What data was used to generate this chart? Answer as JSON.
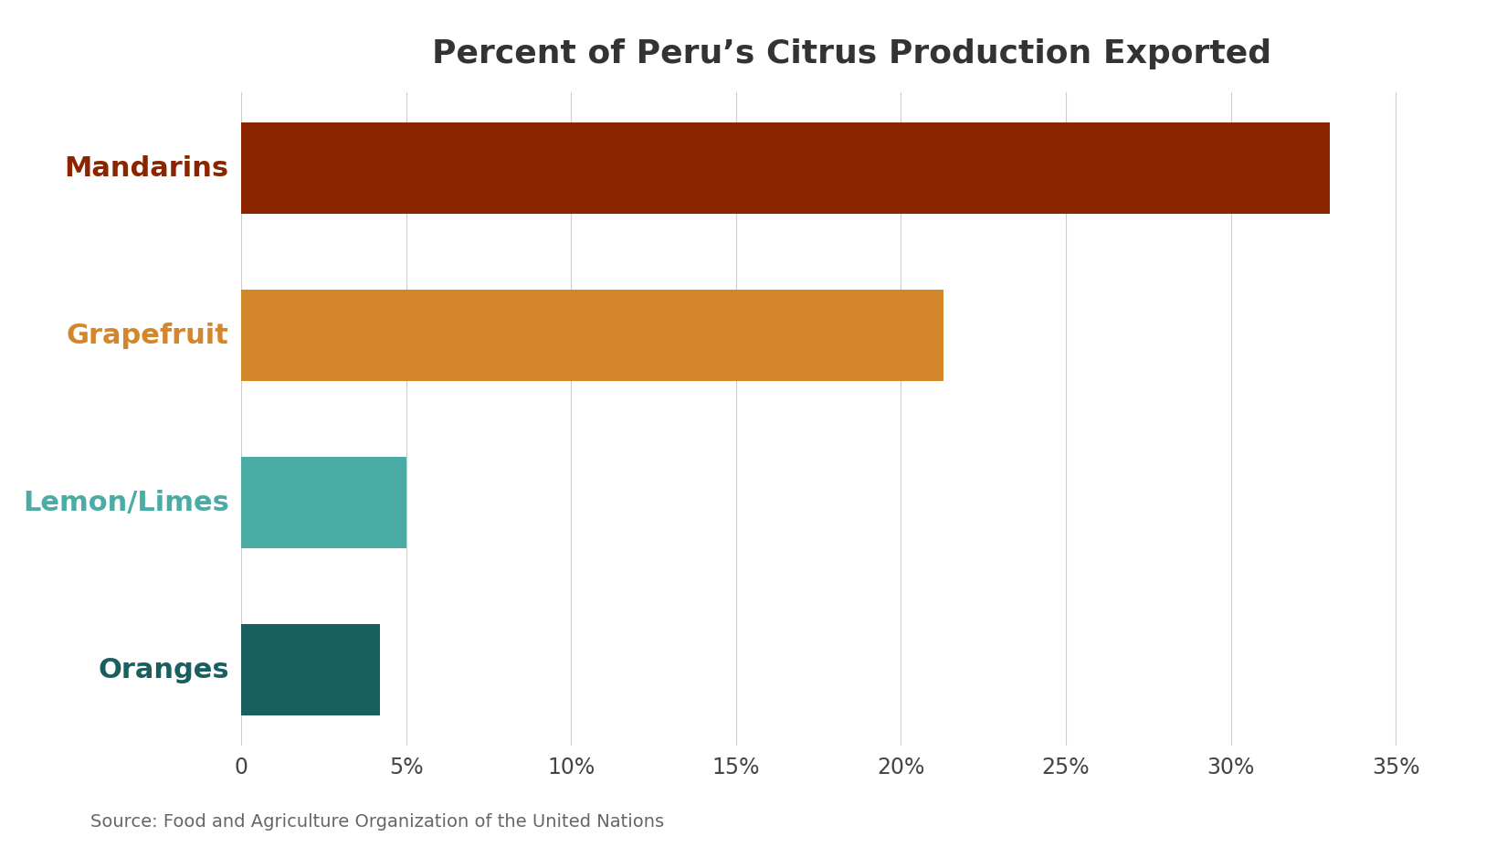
{
  "title": "Percent of Peru’s Citrus Production Exported",
  "categories": [
    "Mandarins",
    "Grapefruit",
    "Lemon/Limes",
    "Oranges"
  ],
  "values": [
    33.0,
    21.3,
    5.0,
    4.2
  ],
  "bar_colors": [
    "#8B2500",
    "#D4872A",
    "#4AACA4",
    "#1A5F5F"
  ],
  "label_colors": [
    "#8B2500",
    "#D4872A",
    "#4AACA4",
    "#1A5F5F"
  ],
  "xlim": [
    0,
    37
  ],
  "xticks": [
    0,
    5,
    10,
    15,
    20,
    25,
    30,
    35
  ],
  "xtick_labels": [
    "0",
    "5%",
    "10%",
    "15%",
    "20%",
    "25%",
    "30%",
    "35%"
  ],
  "source_text": "Source: Food and Agriculture Organization of the United Nations",
  "background_color": "#ffffff",
  "title_fontsize": 26,
  "label_fontsize": 22,
  "tick_fontsize": 17,
  "source_fontsize": 14,
  "bar_height": 0.55
}
